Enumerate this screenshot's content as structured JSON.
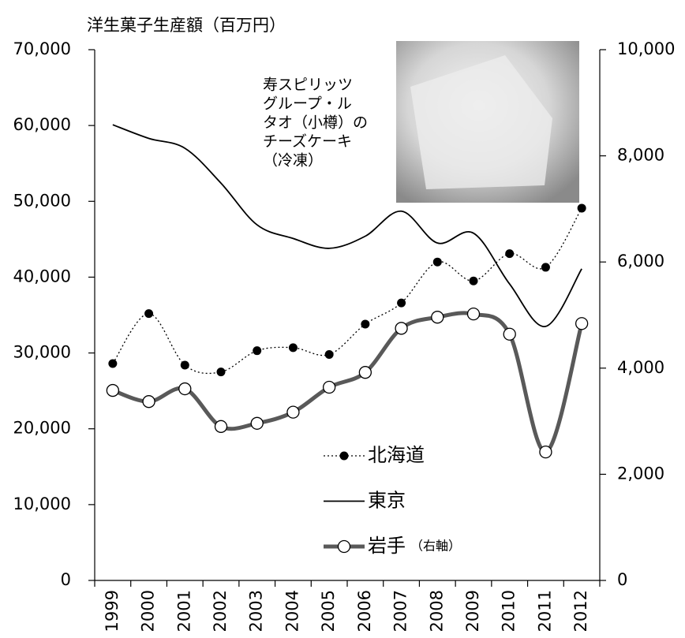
{
  "chart_data": {
    "type": "line",
    "title": "洋生菓子生産額（百万円）",
    "categories": [
      "1999",
      "2000",
      "2001",
      "2002",
      "2003",
      "2004",
      "2005",
      "2006",
      "2007",
      "2008",
      "2009",
      "2010",
      "2011",
      "2012"
    ],
    "series": [
      {
        "name": "北海道",
        "color": "#000000",
        "line_style": "dotted",
        "marker": "filled-circle",
        "axis": "y",
        "values": [
          28600,
          35200,
          28400,
          27500,
          30300,
          30700,
          29800,
          33800,
          36600,
          42000,
          39500,
          43100,
          41300,
          49100
        ]
      },
      {
        "name": "東京",
        "color": "#000000",
        "line_style": "solid",
        "marker": "none",
        "axis": "y",
        "values": [
          60100,
          58300,
          57000,
          52400,
          46900,
          45100,
          43800,
          45400,
          48700,
          44500,
          45800,
          39100,
          33500,
          41100
        ]
      },
      {
        "name": "岩手",
        "color": "#595959",
        "line_style": "thick",
        "marker": "open-circle",
        "axis": "y2",
        "values": [
          3580,
          3370,
          3610,
          2900,
          2960,
          3170,
          3640,
          3920,
          4750,
          4960,
          5020,
          4640,
          2420,
          4840
        ]
      }
    ],
    "axis_note": "（右軸）",
    "annotation": [
      "寿スピリッツ",
      "グループ・ル",
      "タオ（小樽）の",
      "チーズケーキ",
      "（冷凍）"
    ],
    "ylim": [
      0,
      70000
    ],
    "yticks": [
      0,
      {
        "value": 10000,
        "label": "10,000"
      },
      {
        "value": 20000,
        "label": "20,000"
      },
      {
        "value": 30000,
        "label": "30,000"
      },
      {
        "value": 40000,
        "label": "40,000"
      },
      {
        "value": 50000,
        "label": "50,000"
      },
      {
        "value": 60000,
        "label": "60,000"
      },
      {
        "value": 70000,
        "label": "70,000"
      }
    ],
    "y2lim": [
      0,
      10000
    ],
    "y2ticks": [
      0,
      {
        "value": 2000,
        "label": "2,000"
      },
      {
        "value": 4000,
        "label": "4,000"
      },
      {
        "value": 6000,
        "label": "6,000"
      },
      {
        "value": 8000,
        "label": "8,000"
      },
      {
        "value": 10000,
        "label": "10,000"
      }
    ],
    "grid": false
  }
}
